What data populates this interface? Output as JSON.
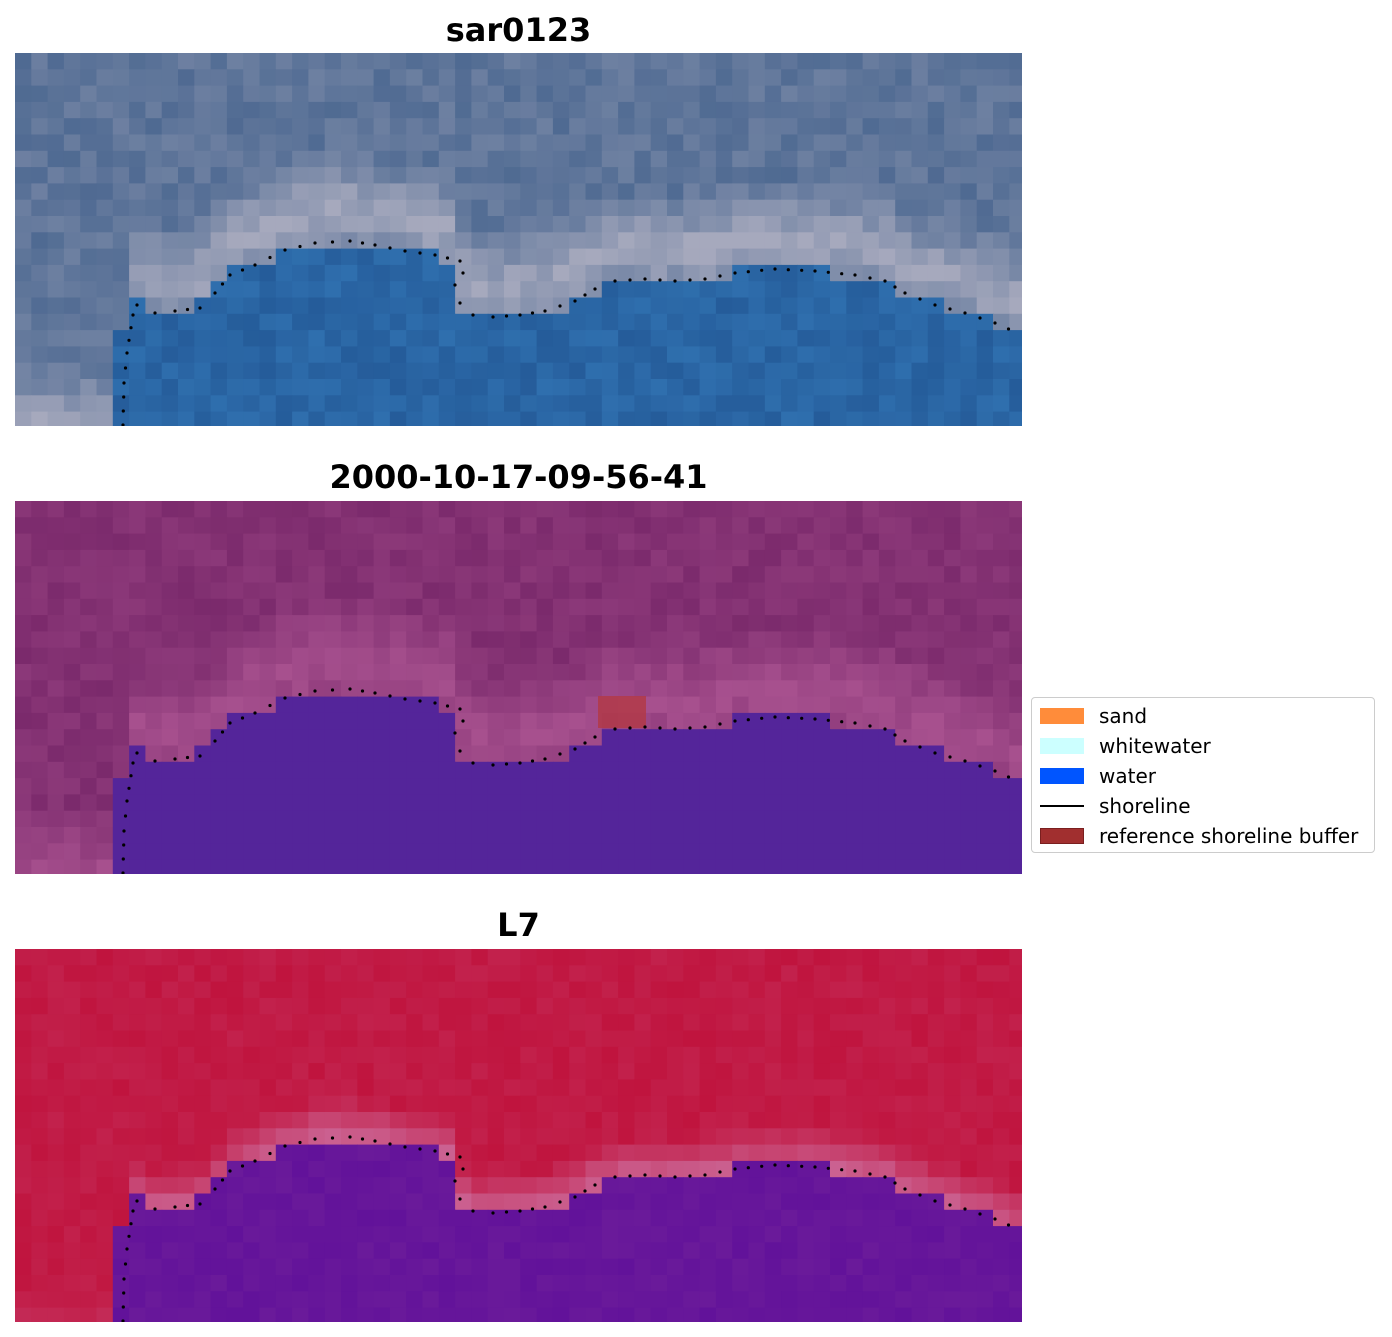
{
  "panels": [
    {
      "title": "sar0123",
      "style": "rgb",
      "colors": {
        "sky": "#4f6a92",
        "light": "#a6a9bd",
        "water": "#2f6fae",
        "deep": "#1e4f8c"
      }
    },
    {
      "title": "2000-10-17-09-56-41",
      "style": "classified",
      "colors": {
        "land": "#7b2a6c",
        "light": "#b25a97",
        "water": "#54259a",
        "buffer": "#b23a48"
      }
    },
    {
      "title": "L7",
      "style": "index",
      "colors": {
        "land": "#c0143e",
        "light": "#cc6a9a",
        "water": "#6a1a9a",
        "deep": "#5a0a9a"
      }
    }
  ],
  "legend": {
    "items": [
      {
        "label": "sand",
        "color": "#ff8c3a",
        "type": "patch"
      },
      {
        "label": "whitewater",
        "color": "#ccffff",
        "type": "patch"
      },
      {
        "label": "water",
        "color": "#0055ff",
        "type": "patch"
      },
      {
        "label": "shoreline",
        "color": "#000000",
        "type": "line"
      },
      {
        "label": "reference shoreline buffer",
        "color": "#a12f2f",
        "type": "patch"
      }
    ]
  }
}
